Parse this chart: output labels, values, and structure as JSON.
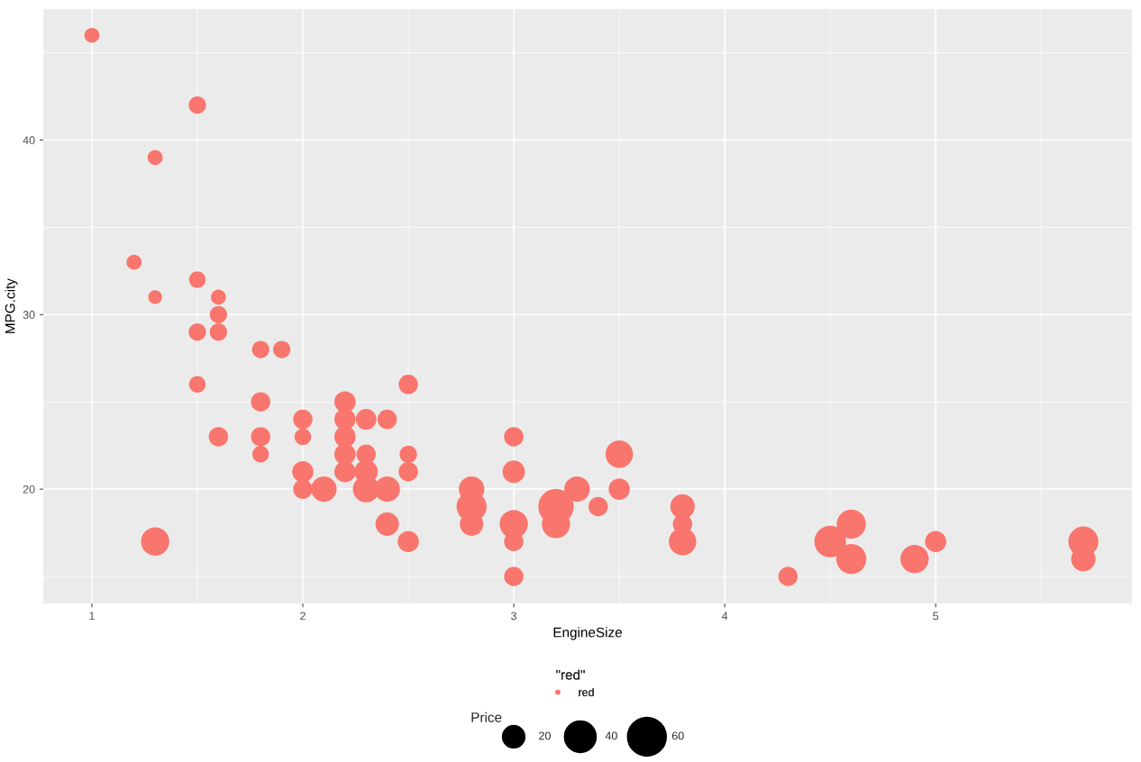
{
  "chart_data": {
    "type": "bubble",
    "xlabel": "EngineSize",
    "ylabel": "MPG.city",
    "legend_title": "\"red\"",
    "annotations": [
      "Price"
    ],
    "xlim": [
      0.77,
      5.93
    ],
    "ylim": [
      13.45,
      47.5
    ],
    "xticks": [
      1,
      2,
      3,
      4,
      5
    ],
    "yticks": [
      20,
      30,
      40
    ],
    "grid": true,
    "legend": "bottom",
    "size_legend": [
      20,
      40,
      60
    ],
    "series": [
      {
        "name": "red",
        "color": "#f8766d",
        "x": [
          1.0,
          1.5,
          1.3,
          1.2,
          1.3,
          1.5,
          1.6,
          1.6,
          1.5,
          1.6,
          1.8,
          1.9,
          1.5,
          1.6,
          1.8,
          1.8,
          1.8,
          1.3,
          2.0,
          2.0,
          2.0,
          2.0,
          2.1,
          2.2,
          2.2,
          2.2,
          2.2,
          2.2,
          2.3,
          2.3,
          2.3,
          2.3,
          2.4,
          2.4,
          2.4,
          2.5,
          2.5,
          2.5,
          2.5,
          2.8,
          2.8,
          2.8,
          3.0,
          3.0,
          3.0,
          3.0,
          3.0,
          3.2,
          3.2,
          3.3,
          3.4,
          3.5,
          3.5,
          3.8,
          3.8,
          3.8,
          4.3,
          4.5,
          4.6,
          4.6,
          4.9,
          5.0,
          5.7,
          5.7
        ],
        "values": [
          46,
          42,
          39,
          33,
          31,
          32,
          31,
          30,
          29,
          29,
          28,
          28,
          26,
          23,
          25,
          23,
          22,
          17,
          24,
          23,
          21,
          20,
          20,
          25,
          24,
          23,
          22,
          21,
          24,
          22,
          21,
          20,
          24,
          20,
          18,
          26,
          22,
          21,
          17,
          20,
          19,
          18,
          23,
          21,
          18,
          17,
          15,
          19,
          18,
          20,
          19,
          22,
          20,
          19,
          18,
          17,
          15,
          17,
          18,
          16,
          16,
          17,
          17,
          16
        ],
        "sizes": [
          9,
          12,
          9,
          9,
          7.5,
          11,
          9,
          12,
          12,
          12,
          12,
          12,
          11,
          15,
          15,
          15,
          11,
          32,
          15,
          11,
          18,
          15,
          26,
          18,
          18,
          18,
          18,
          18,
          17,
          15,
          22,
          28,
          15,
          26,
          22,
          15,
          12,
          15,
          18,
          26,
          36,
          22,
          15,
          20,
          32,
          15,
          15,
          50,
          32,
          26,
          15,
          30,
          18,
          24,
          15,
          30,
          15,
          40,
          34,
          36,
          32,
          18,
          36,
          24
        ]
      }
    ]
  }
}
